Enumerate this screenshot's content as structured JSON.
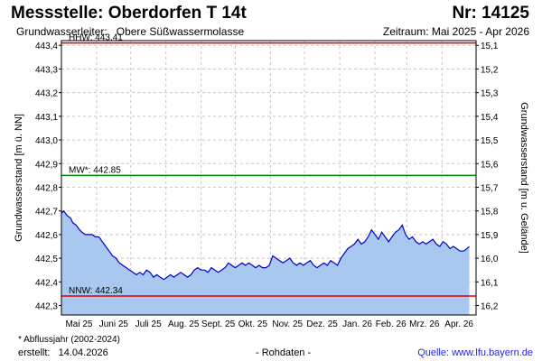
{
  "header": {
    "title": "Messstelle: Oberdorfen T 14t",
    "number": "Nr: 14125",
    "aquifer_label": "Grundwasserleiter:",
    "aquifer": "Obere Süßwassermolasse",
    "period": "Zeitraum: Mai 2025 - Apr 2026"
  },
  "footer": {
    "footnote": "* Abflussjahr (2002-2024)",
    "created_label": "erstellt:",
    "created_date": "14.04.2026",
    "raw": "- Rohdaten -",
    "source_label": "Quelle:",
    "source_url": "www.lfu.bayern.de"
  },
  "colors": {
    "fill": "#a8c8f0",
    "line": "#0000cc",
    "hhw": "#dd0000",
    "nnw": "#dd0000",
    "mw": "#008800",
    "grid": "#c8c8c8"
  },
  "chart_data": {
    "type": "area",
    "ylabel": "Grundwasserstand [m ü. NN]",
    "ylabel_right": "Grundwasserstand [m u. Gelände]",
    "ylim": [
      442.26,
      443.42
    ],
    "yticks": [
      "443,4",
      "443,3",
      "443,2",
      "443,1",
      "443,0",
      "442,9",
      "442,8",
      "442,7",
      "442,6",
      "442,5",
      "442,4",
      "442,3"
    ],
    "yticks_right": [
      "15,1",
      "15,2",
      "15,3",
      "15,4",
      "15,5",
      "15,6",
      "15,7",
      "15,8",
      "15,9",
      "16,0",
      "16,1",
      "16,2"
    ],
    "xticks": [
      "Mai 25",
      "Juni 25",
      "Juli 25",
      "Aug. 25",
      "Sept. 25",
      "Okt. 25",
      "Nov. 25",
      "Dez. 25",
      "Jan. 26",
      "Feb. 26",
      "Mrz. 26",
      "Apr. 26"
    ],
    "reference_lines": [
      {
        "label": "HHW: 443.41",
        "value": 443.41
      },
      {
        "label": "MW*: 442.85",
        "value": 442.85
      },
      {
        "label": "NNW: 442.34",
        "value": 442.34
      }
    ],
    "series": [
      {
        "x_unit": "day of period (0 = 1 May 2025)",
        "points": [
          [
            0,
            442.69
          ],
          [
            2,
            442.7
          ],
          [
            5,
            442.68
          ],
          [
            8,
            442.67
          ],
          [
            10,
            442.65
          ],
          [
            13,
            442.64
          ],
          [
            16,
            442.62
          ],
          [
            18,
            442.61
          ],
          [
            21,
            442.6
          ],
          [
            24,
            442.6
          ],
          [
            27,
            442.6
          ],
          [
            30,
            442.59
          ],
          [
            33,
            442.59
          ],
          [
            36,
            442.57
          ],
          [
            39,
            442.55
          ],
          [
            42,
            442.53
          ],
          [
            45,
            442.51
          ],
          [
            48,
            442.5
          ],
          [
            51,
            442.48
          ],
          [
            54,
            442.47
          ],
          [
            57,
            442.46
          ],
          [
            60,
            442.45
          ],
          [
            63,
            442.44
          ],
          [
            66,
            442.43
          ],
          [
            69,
            442.44
          ],
          [
            72,
            442.43
          ],
          [
            75,
            442.45
          ],
          [
            78,
            442.44
          ],
          [
            81,
            442.42
          ],
          [
            84,
            442.43
          ],
          [
            87,
            442.42
          ],
          [
            90,
            442.41
          ],
          [
            93,
            442.42
          ],
          [
            96,
            442.43
          ],
          [
            99,
            442.42
          ],
          [
            102,
            442.43
          ],
          [
            105,
            442.44
          ],
          [
            108,
            442.43
          ],
          [
            111,
            442.42
          ],
          [
            114,
            442.43
          ],
          [
            117,
            442.45
          ],
          [
            120,
            442.46
          ],
          [
            123,
            442.45
          ],
          [
            126,
            442.45
          ],
          [
            129,
            442.44
          ],
          [
            132,
            442.46
          ],
          [
            135,
            442.45
          ],
          [
            138,
            442.44
          ],
          [
            141,
            442.45
          ],
          [
            144,
            442.46
          ],
          [
            147,
            442.48
          ],
          [
            150,
            442.47
          ],
          [
            153,
            442.46
          ],
          [
            156,
            442.47
          ],
          [
            159,
            442.48
          ],
          [
            162,
            442.47
          ],
          [
            165,
            442.48
          ],
          [
            168,
            442.47
          ],
          [
            171,
            442.46
          ],
          [
            174,
            442.47
          ],
          [
            177,
            442.46
          ],
          [
            180,
            442.46
          ],
          [
            183,
            442.47
          ],
          [
            186,
            442.51
          ],
          [
            189,
            442.5
          ],
          [
            192,
            442.49
          ],
          [
            195,
            442.48
          ],
          [
            198,
            442.49
          ],
          [
            201,
            442.5
          ],
          [
            204,
            442.48
          ],
          [
            207,
            442.47
          ],
          [
            210,
            442.48
          ],
          [
            213,
            442.47
          ],
          [
            216,
            442.48
          ],
          [
            219,
            442.49
          ],
          [
            222,
            442.47
          ],
          [
            225,
            442.46
          ],
          [
            228,
            442.47
          ],
          [
            231,
            442.48
          ],
          [
            234,
            442.47
          ],
          [
            237,
            442.49
          ],
          [
            240,
            442.48
          ],
          [
            243,
            442.47
          ],
          [
            246,
            442.5
          ],
          [
            249,
            442.52
          ],
          [
            252,
            442.54
          ],
          [
            255,
            442.55
          ],
          [
            258,
            442.56
          ],
          [
            261,
            442.58
          ],
          [
            264,
            442.56
          ],
          [
            267,
            442.57
          ],
          [
            270,
            442.59
          ],
          [
            273,
            442.62
          ],
          [
            276,
            442.6
          ],
          [
            279,
            442.58
          ],
          [
            282,
            442.61
          ],
          [
            285,
            442.59
          ],
          [
            288,
            442.57
          ],
          [
            291,
            442.59
          ],
          [
            294,
            442.61
          ],
          [
            297,
            442.62
          ],
          [
            300,
            442.64
          ],
          [
            303,
            442.6
          ],
          [
            306,
            442.58
          ],
          [
            309,
            442.59
          ],
          [
            312,
            442.57
          ],
          [
            315,
            442.56
          ],
          [
            318,
            442.57
          ],
          [
            321,
            442.56
          ],
          [
            324,
            442.57
          ],
          [
            327,
            442.58
          ],
          [
            330,
            442.56
          ],
          [
            333,
            442.55
          ],
          [
            336,
            442.57
          ],
          [
            339,
            442.56
          ],
          [
            342,
            442.54
          ],
          [
            345,
            442.55
          ],
          [
            348,
            442.54
          ],
          [
            351,
            442.53
          ],
          [
            354,
            442.53
          ],
          [
            357,
            442.54
          ],
          [
            359,
            442.55
          ]
        ]
      }
    ]
  }
}
